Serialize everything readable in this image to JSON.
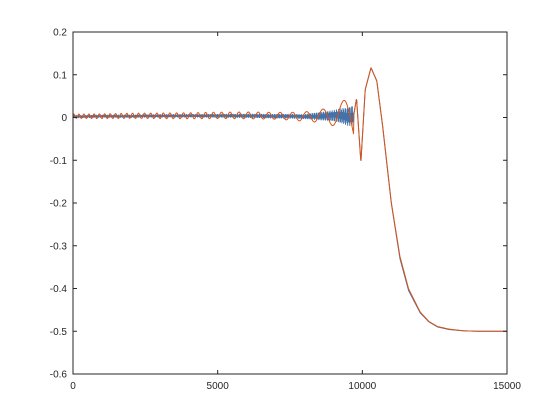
{
  "chart_data": {
    "type": "line",
    "title": "",
    "xlabel": "",
    "ylabel": "",
    "xlim": [
      0,
      15000
    ],
    "ylim": [
      -0.6,
      0.2
    ],
    "x_ticks": [
      0,
      5000,
      10000,
      15000
    ],
    "x_tick_labels": [
      "0",
      "5000",
      "10000",
      "15000"
    ],
    "y_ticks": [
      -0.6,
      -0.5,
      -0.4,
      -0.3,
      -0.2,
      -0.1,
      0,
      0.1,
      0.2
    ],
    "y_tick_labels": [
      "-0.6",
      "-0.5",
      "-0.4",
      "-0.3",
      "-0.2",
      "-0.1",
      "0",
      "0.1",
      "0.2"
    ],
    "grid": false,
    "box": true,
    "series": [
      {
        "color": "#4472a8",
        "x": [
          0,
          1000,
          2000,
          3000,
          4000,
          5000,
          6000,
          7000,
          7500,
          8000,
          8300,
          8600,
          8900,
          9100,
          9300,
          9500,
          9700,
          9800,
          9950,
          10100,
          10300,
          10500,
          10700,
          11000,
          11300,
          11600,
          12000,
          12300,
          12600,
          13000,
          13500,
          14000,
          14500,
          15000
        ],
        "y": [
          0.002,
          0.003,
          0.003,
          0.004,
          0.004,
          0.004,
          0.004,
          0.003,
          0.003,
          0.002,
          0.003,
          0.003,
          0.004,
          0.004,
          0.004,
          0.002,
          0.005,
          0.045,
          -0.105,
          0.065,
          0.116,
          0.085,
          -0.02,
          -0.2,
          -0.33,
          -0.405,
          -0.457,
          -0.478,
          -0.49,
          -0.496,
          -0.499,
          -0.5,
          -0.5,
          -0.5
        ]
      },
      {
        "color": "#d95319",
        "x": [
          0,
          1000,
          2000,
          3000,
          4000,
          5000,
          6000,
          7000,
          7500,
          8000,
          8300,
          8600,
          8900,
          9100,
          9300,
          9500,
          9700,
          9800,
          9950,
          10100,
          10300,
          10500,
          10700,
          11000,
          11300,
          11600,
          12000,
          12300,
          12600,
          13000,
          13500,
          14000,
          14500,
          15000
        ],
        "y": [
          0.003,
          0.003,
          0.004,
          0.004,
          0.004,
          0.005,
          0.005,
          0.004,
          0.003,
          0.002,
          0.003,
          0.003,
          0.004,
          0.004,
          0.004,
          0.002,
          0.005,
          0.044,
          -0.104,
          0.066,
          0.117,
          0.086,
          -0.018,
          -0.198,
          -0.325,
          -0.401,
          -0.455,
          -0.477,
          -0.489,
          -0.495,
          -0.499,
          -0.5,
          -0.5,
          -0.5
        ],
        "oscillation_envelope": {
          "x": [
            0,
            2000,
            4000,
            6000,
            7000,
            7500,
            8000,
            8300,
            8600,
            8900,
            9100,
            9300,
            9500,
            9700
          ],
          "amplitude": [
            0.005,
            0.006,
            0.007,
            0.008,
            0.008,
            0.009,
            0.011,
            0.013,
            0.016,
            0.021,
            0.026,
            0.033,
            0.045,
            0.062
          ]
        }
      }
    ]
  }
}
